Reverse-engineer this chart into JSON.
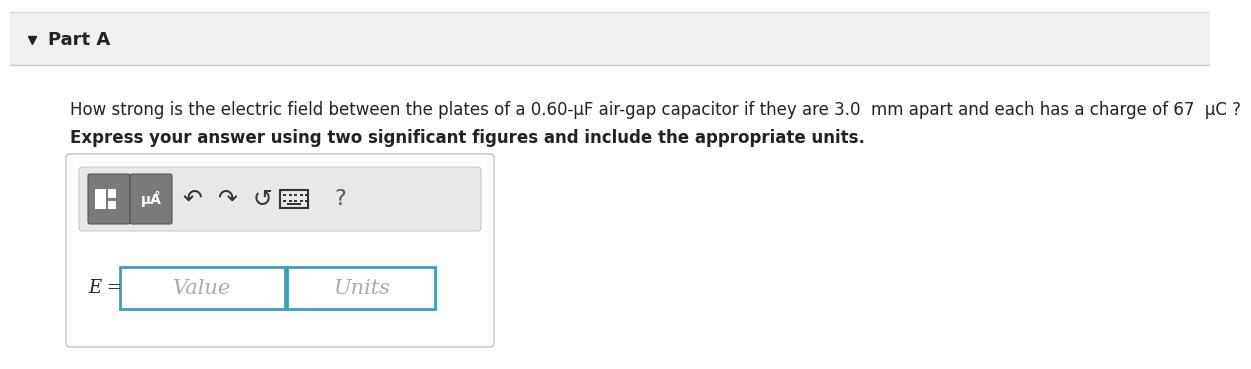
{
  "bg_color": "#f5f5f5",
  "white_bg": "#ffffff",
  "part_a_text": "Part A",
  "question_text": "How strong is the electric field between the plates of a 0.60-μF air-gap capacitor if they are 3.0  mm apart and each has a charge of 67  μC ?",
  "instruction_text": "Express your answer using two significant figures and include the appropriate units.",
  "e_label": "E =",
  "value_placeholder": "Value",
  "units_placeholder": "Units",
  "teal_color": "#3a9fba",
  "border_color": "#bbbbbb",
  "text_color": "#222222",
  "placeholder_color": "#aaaaaa",
  "icon_color": "#333333",
  "question_mark_color": "#555555",
  "part_a_bg": "#f0f0f0",
  "header_line_color": "#cccccc",
  "toolbar_bg": "#e8e8e8",
  "btn_color": "#888888",
  "btn_edge": "#666666",
  "top_line_color": "#dddddd",
  "outer_box_border": "#cccccc"
}
